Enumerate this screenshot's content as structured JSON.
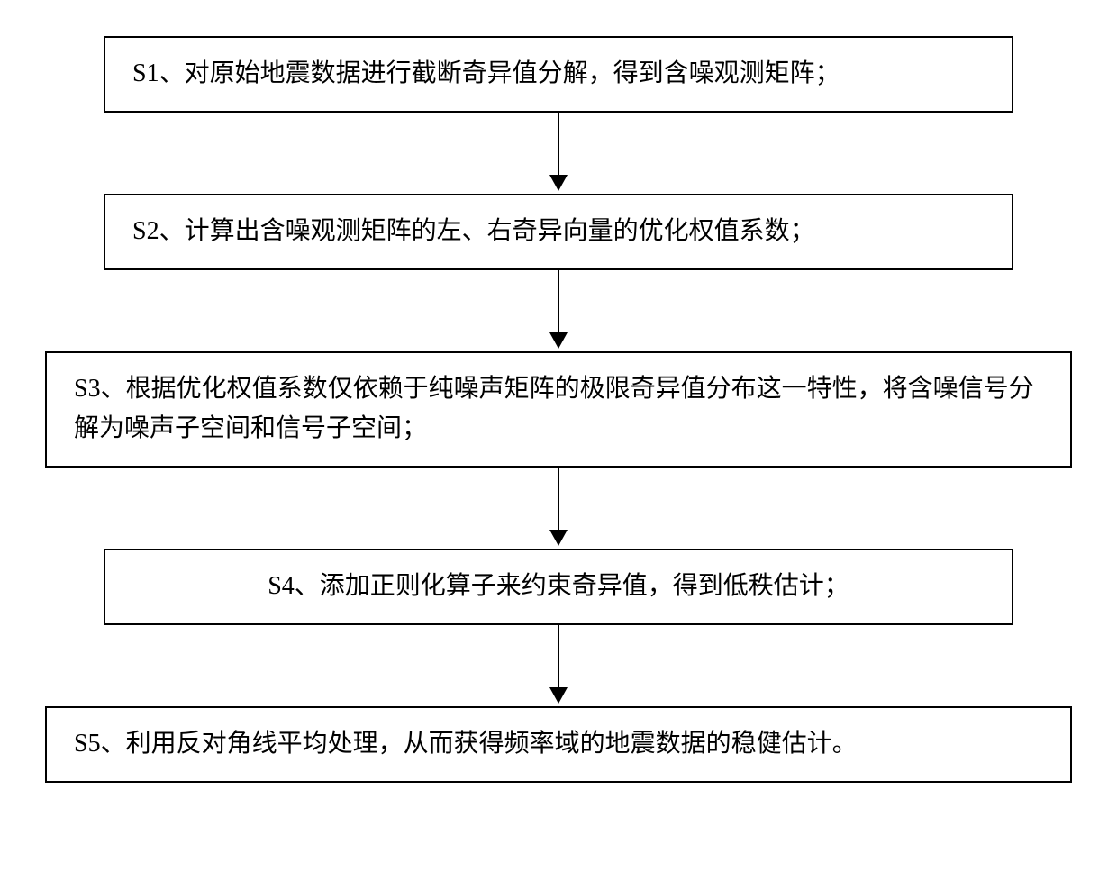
{
  "flowchart": {
    "type": "flowchart",
    "direction": "vertical",
    "background_color": "#ffffff",
    "border_color": "#000000",
    "border_width": 2,
    "text_color": "#000000",
    "font_size": 28,
    "font_family": "SimSun",
    "arrow_color": "#000000",
    "arrow_line_width": 2,
    "arrow_head_size": 18,
    "nodes": [
      {
        "id": "s1",
        "text": "S1、对原始地震数据进行截断奇异值分解，得到含噪观测矩阵；",
        "width_class": "narrow",
        "align": "left"
      },
      {
        "id": "s2",
        "text": "S2、计算出含噪观测矩阵的左、右奇异向量的优化权值系数；",
        "width_class": "narrow",
        "align": "left"
      },
      {
        "id": "s3",
        "text": "S3、根据优化权值系数仅依赖于纯噪声矩阵的极限奇异值分布这一特性，将含噪信号分解为噪声子空间和信号子空间；",
        "width_class": "wide",
        "align": "left"
      },
      {
        "id": "s4",
        "text": "S4、添加正则化算子来约束奇异值，得到低秩估计；",
        "width_class": "narrow",
        "align": "center"
      },
      {
        "id": "s5",
        "text": "S5、利用反对角线平均处理，从而获得频率域的地震数据的稳健估计。",
        "width_class": "wide",
        "align": "left"
      }
    ],
    "edges": [
      {
        "from": "s1",
        "to": "s2"
      },
      {
        "from": "s2",
        "to": "s3"
      },
      {
        "from": "s3",
        "to": "s4"
      },
      {
        "from": "s4",
        "to": "s5"
      }
    ]
  }
}
